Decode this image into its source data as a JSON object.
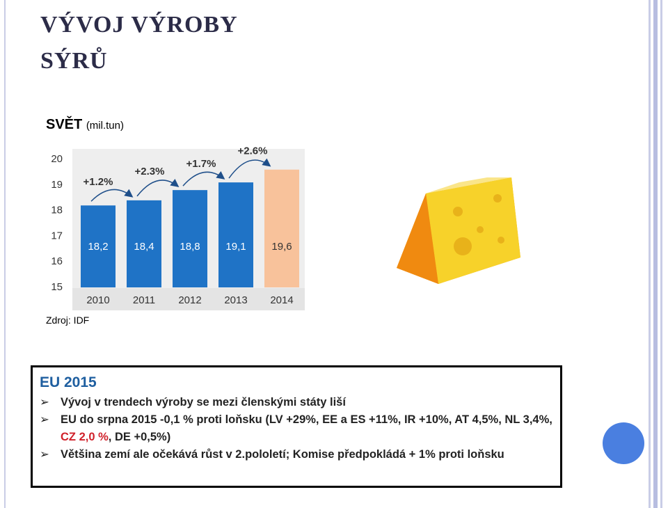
{
  "title": "VÝVOJ VÝROBY SÝRŮ",
  "chart_heading": {
    "main": "SVĚT",
    "unit": "(mil.tun)"
  },
  "chart_data": {
    "type": "bar",
    "categories": [
      "2010",
      "2011",
      "2012",
      "2013",
      "2014"
    ],
    "values": [
      18.2,
      18.4,
      18.8,
      19.1,
      19.6
    ],
    "value_labels": [
      "18,2",
      "18,4",
      "18,8",
      "19,1",
      "19,6"
    ],
    "colors": [
      "#1f73c6",
      "#1f73c6",
      "#1f73c6",
      "#1f73c6",
      "#f8c29b"
    ],
    "annotations": [
      "+1.2%",
      "+2.3%",
      "+1.7%",
      "+2.6%"
    ],
    "ylim": [
      15,
      20
    ],
    "yticks": [
      15,
      16,
      17,
      18,
      19,
      20
    ]
  },
  "source": "Zdroj: IDF",
  "box": {
    "heading": "EU 2015",
    "bullets": [
      [
        {
          "text": "Vývoj v trendech výroby se mezi členskými státy liší"
        }
      ],
      [
        {
          "text": "EU do srpna 2015 -0,1 % proti loňsku (LV +29%, EE a ES +11%, IR +10%, AT 4,5%, NL 3,4%, "
        },
        {
          "text": "CZ 2,0 %",
          "highlight": true
        },
        {
          "text": ", DE +0,5%)"
        }
      ],
      [
        {
          "text": "Většina zemí ale očekává růst v 2.pololetí; Komise předpokládá + 1% proti loňsku"
        }
      ]
    ]
  }
}
